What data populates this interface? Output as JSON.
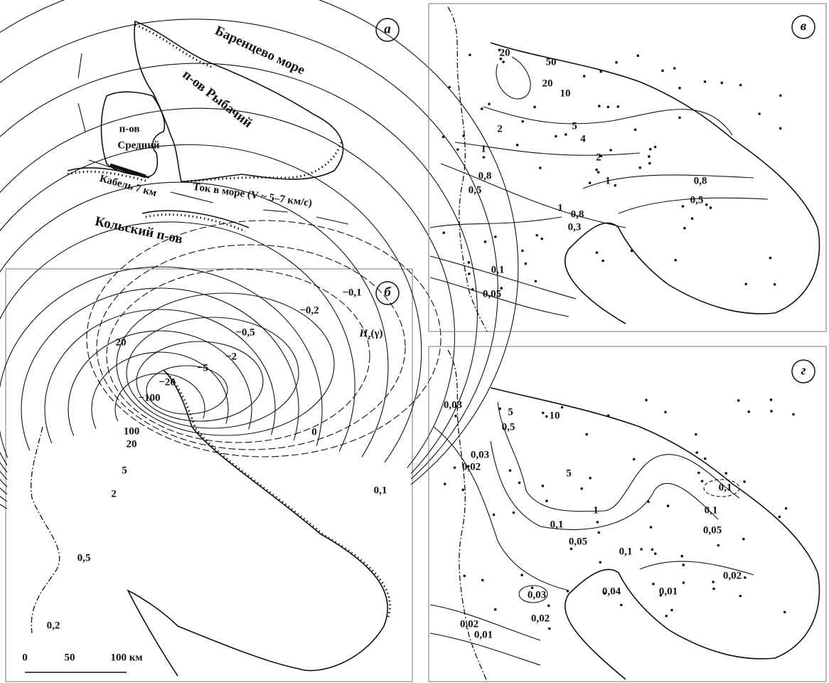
{
  "panels": {
    "a": {
      "label": "а",
      "sea": "Баренцево море",
      "rybachy": "п-ов Рыбачий",
      "sredny": [
        "п-ов",
        "Средний"
      ],
      "cable": "Кабель 7 км",
      "current": "Ток в море (V ~ 5–7 км/с)",
      "kola": "Кольский п-ов"
    },
    "b": {
      "label": "б",
      "field_symbol": "H",
      "field_subscript": "z",
      "field_unit": "(γ)",
      "contour_labels": [
        "−0,1",
        "−0,2",
        "−0,5",
        "−2",
        "−5",
        "−20",
        "−100",
        "20",
        "100",
        "20",
        "5",
        "2",
        "0",
        "0,1",
        "0,5",
        "0,2"
      ],
      "scale_labels": [
        "0",
        "50",
        "100 км"
      ]
    },
    "v": {
      "label": "в",
      "contour_labels": [
        "20",
        "50",
        "20",
        "10",
        "5",
        "4",
        "2",
        "2",
        "1",
        "0,8",
        "0,5",
        "1",
        "0,8",
        "0,5",
        "1",
        "0,8",
        "0,3",
        "0,1",
        "0,05"
      ]
    },
    "g": {
      "label": "г",
      "contour_labels": [
        "5",
        "0,5",
        "10",
        "0,03",
        "0,03",
        "0,02",
        "5",
        "1",
        "0,1",
        "0,05",
        "0,1",
        "0,05",
        "0,1",
        "0,02",
        "0,01",
        "0,04",
        "0,1",
        "0,03",
        "0,02",
        "0,02",
        "0,01"
      ]
    }
  }
}
